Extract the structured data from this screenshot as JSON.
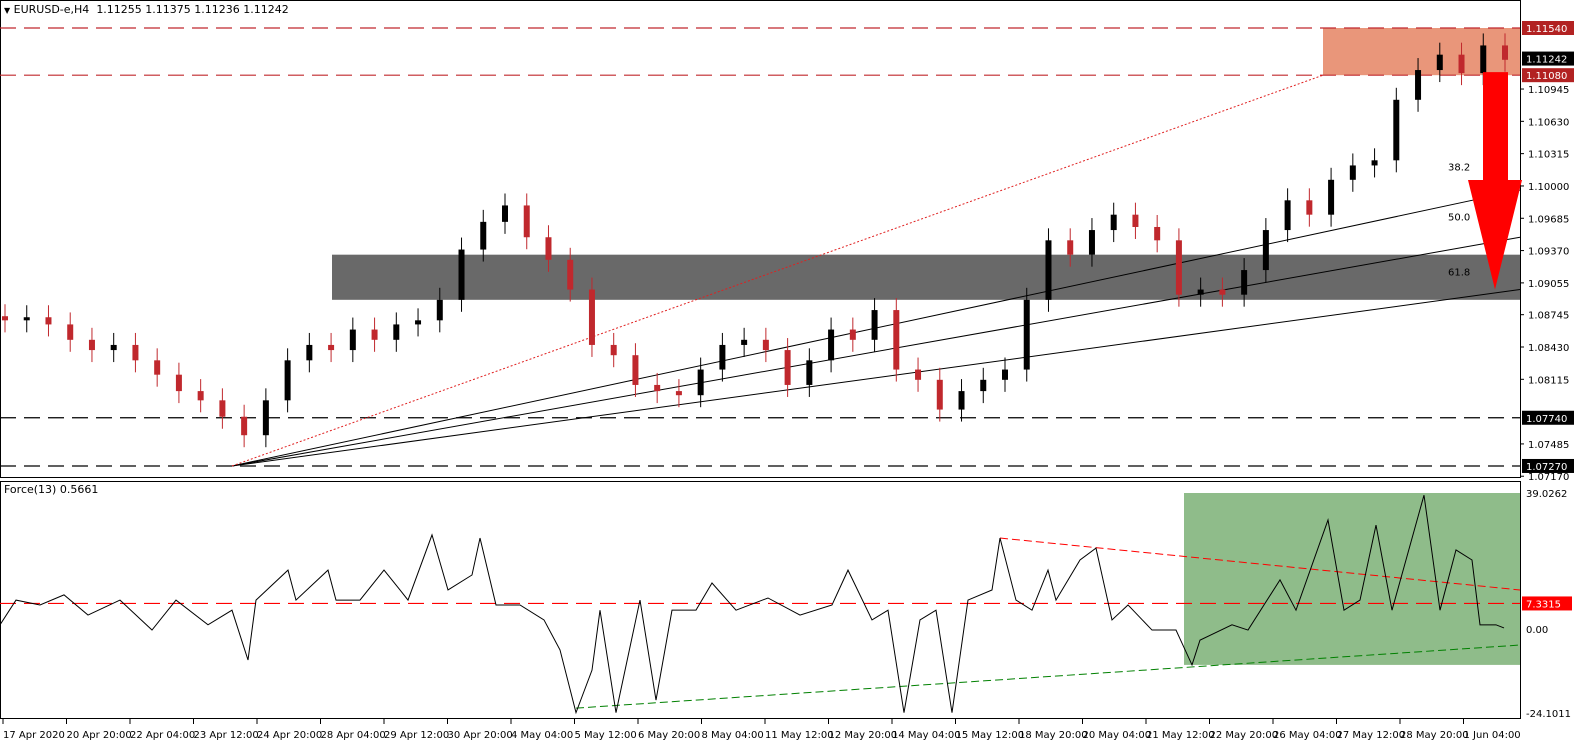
{
  "header": {
    "symbol": "EURUSD-e,H4",
    "ohlc": "1.11255 1.11375 1.11236 1.11242",
    "arrow": "▼"
  },
  "indicator": {
    "label": "Force(13) 0.5661"
  },
  "chart_data": [
    {
      "type": "candlestick",
      "title": "EURUSD-e,H4",
      "ylim": [
        1.0717,
        1.1154
      ],
      "price_ticks": [
        "1.10945",
        "1.10630",
        "1.10315",
        "1.10000",
        "1.09685",
        "1.09370",
        "1.09055",
        "1.08745",
        "1.08430",
        "1.08115",
        "1.07485",
        "1.07170"
      ],
      "price_tags": [
        {
          "value": 1.1154,
          "text": "1.11540",
          "color": "#b22222"
        },
        {
          "value": 1.11242,
          "text": "1.11242",
          "color": "#000000"
        },
        {
          "value": 1.1108,
          "text": "1.11080",
          "color": "#b22222"
        },
        {
          "value": 1.0774,
          "text": "1.07740",
          "color": "#000000"
        },
        {
          "value": 1.0727,
          "text": "1.07270",
          "color": "#000000"
        }
      ],
      "x_labels": [
        "17 Apr 2020",
        "20 Apr 20:00",
        "22 Apr 04:00",
        "23 Apr 12:00",
        "24 Apr 20:00",
        "28 Apr 04:00",
        "29 Apr 12:00",
        "30 Apr 20:00",
        "4 May 04:00",
        "5 May 12:00",
        "6 May 20:00",
        "8 May 04:00",
        "11 May 12:00",
        "12 May 20:00",
        "14 May 04:00",
        "15 May 12:00",
        "18 May 20:00",
        "20 May 04:00",
        "21 May 12:00",
        "22 May 20:00",
        "26 May 04:00",
        "27 May 12:00",
        "28 May 20:00",
        "1 Jun 04:00"
      ],
      "closes": [
        1.0869,
        1.0872,
        1.0865,
        1.085,
        1.084,
        1.0845,
        1.083,
        1.0816,
        1.08,
        1.0791,
        1.0775,
        1.0757,
        1.0791,
        1.083,
        1.0845,
        1.084,
        1.086,
        1.085,
        1.0865,
        1.0869,
        1.0889,
        1.0938,
        1.0965,
        1.0981,
        1.095,
        1.0928,
        1.0899,
        1.0845,
        1.0835,
        1.0806,
        1.08,
        1.0796,
        1.0821,
        1.0845,
        1.085,
        1.084,
        1.0806,
        1.083,
        1.086,
        1.085,
        1.0879,
        1.0821,
        1.0811,
        1.0782,
        1.08,
        1.0811,
        1.0821,
        1.0889,
        1.0947,
        1.0933,
        1.0957,
        1.0972,
        1.096,
        1.0947,
        1.0894,
        1.0899,
        1.0894,
        1.0918,
        1.0957,
        1.0986,
        1.0972,
        1.1006,
        1.102,
        1.1025,
        1.1084,
        1.1113,
        1.1128,
        1.111,
        1.1137,
        1.1123
      ],
      "up_color": "#000000",
      "down_color": "#c0282d",
      "levels": [
        {
          "value": 1.1154,
          "color": "#c0282d",
          "style": "dashed"
        },
        {
          "value": 1.1108,
          "color": "#c0282d",
          "style": "dashed"
        },
        {
          "value": 1.0774,
          "color": "#000000",
          "style": "dashed"
        },
        {
          "value": 1.0727,
          "color": "#000000",
          "style": "dashed"
        }
      ],
      "resistance_zone": {
        "from": 1.1108,
        "to": 1.1154,
        "color": "#e9967a"
      },
      "support_zone": {
        "from": 1.0889,
        "to": 1.0933,
        "color": "#696969"
      },
      "fib_fan": {
        "origin_price": 1.0727,
        "levels": [
          {
            "label": "38.2",
            "end_price": 1.0996
          },
          {
            "label": "50.0",
            "end_price": 1.095
          },
          {
            "label": "61.8",
            "end_price": 1.0899
          }
        ],
        "trend_end_price": 1.1108
      },
      "arrow": {
        "direction": "down",
        "from": 1.1108,
        "to": 1.0899,
        "color": "#ff0000"
      }
    },
    {
      "type": "line",
      "title": "Force(13) 0.5661",
      "ylim": [
        -24.1011,
        39.0262
      ],
      "ticks": [
        "39.0262",
        "0.00",
        "-24.1011"
      ],
      "level": {
        "value": 7.3315,
        "text": "7.3315",
        "color": "#ff0000"
      },
      "points": [
        [
          0,
          1.2
        ],
        [
          2,
          8.3
        ],
        [
          5,
          6.9
        ],
        [
          8,
          9.8
        ],
        [
          11,
          4.0
        ],
        [
          15,
          8.3
        ],
        [
          19,
          -0.3
        ],
        [
          22,
          8.3
        ],
        [
          26,
          1.2
        ],
        [
          29,
          5.4
        ],
        [
          31,
          -8.9
        ],
        [
          32,
          8.3
        ],
        [
          36,
          16.9
        ],
        [
          37,
          8.3
        ],
        [
          41,
          16.9
        ],
        [
          42,
          8.3
        ],
        [
          45,
          8.3
        ],
        [
          48,
          16.9
        ],
        [
          50,
          11.2
        ],
        [
          51,
          8.3
        ],
        [
          54,
          27.0
        ],
        [
          56,
          11.2
        ],
        [
          59,
          15.5
        ],
        [
          60,
          26.1
        ],
        [
          62,
          6.9
        ],
        [
          65,
          6.9
        ],
        [
          68,
          2.6
        ],
        [
          70,
          -6.0
        ],
        [
          72,
          -24
        ],
        [
          74,
          -11.8
        ],
        [
          75,
          5.4
        ],
        [
          77,
          -24
        ],
        [
          80,
          8.3
        ],
        [
          82,
          -20.4
        ],
        [
          84,
          5.4
        ],
        [
          87,
          5.4
        ],
        [
          89,
          13.2
        ],
        [
          92,
          5.4
        ],
        [
          96,
          8.9
        ],
        [
          100,
          4.0
        ],
        [
          104,
          6.9
        ],
        [
          106,
          16.9
        ],
        [
          109,
          2.6
        ],
        [
          111,
          5.4
        ],
        [
          113,
          -24
        ],
        [
          115,
          2.6
        ],
        [
          117,
          5.4
        ],
        [
          119,
          -24
        ],
        [
          121,
          8.3
        ],
        [
          124,
          11.2
        ],
        [
          125,
          26.1
        ],
        [
          127,
          8.3
        ],
        [
          129,
          5.4
        ],
        [
          131,
          16.9
        ],
        [
          132,
          8.3
        ],
        [
          135,
          19.8
        ],
        [
          137,
          23.2
        ],
        [
          139,
          2.6
        ],
        [
          141,
          6.9
        ],
        [
          144,
          -0.3
        ],
        [
          147,
          -0.3
        ],
        [
          149,
          -10.3
        ],
        [
          150,
          -3.2
        ],
        [
          154,
          1.2
        ],
        [
          156,
          -0.3
        ],
        [
          160,
          14.1
        ],
        [
          162,
          5.4
        ],
        [
          166,
          31.3
        ],
        [
          168,
          5.4
        ],
        [
          170,
          8.3
        ],
        [
          172,
          29.8
        ],
        [
          174,
          5.4
        ],
        [
          178,
          38.4
        ],
        [
          180,
          5.4
        ],
        [
          182,
          22.7
        ],
        [
          184,
          19.8
        ],
        [
          185,
          1.2
        ],
        [
          187,
          1.2
        ],
        [
          188,
          0.3
        ]
      ],
      "red_trendline": [
        [
          125,
          26.1
        ],
        [
          190,
          11.2
        ]
      ],
      "green_trendline": [
        [
          72,
          -22.7
        ],
        [
          190,
          -4.6
        ]
      ],
      "green_zone": {
        "from_bar": 148,
        "top": 39.0262,
        "bottom": -10.3,
        "color": "#8fbc8a"
      }
    }
  ]
}
